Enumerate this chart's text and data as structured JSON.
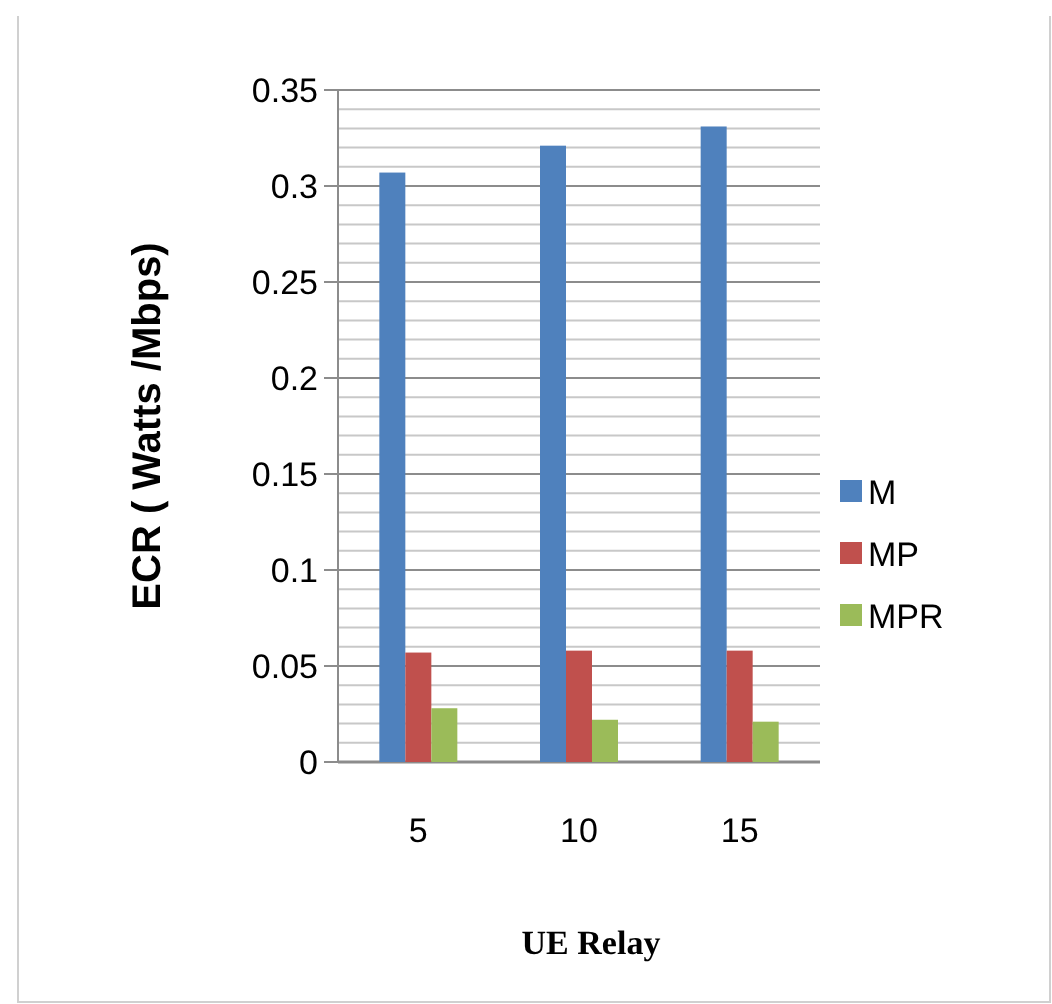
{
  "chart_data": {
    "type": "bar",
    "xlabel": "UE Relay",
    "ylabel": "ECR ( Watts /Mbps)",
    "categories": [
      "5",
      "10",
      "15"
    ],
    "series": [
      {
        "name": "M",
        "color": "#4f81bd",
        "values": [
          0.307,
          0.321,
          0.331
        ]
      },
      {
        "name": "MP",
        "color": "#c0504d",
        "values": [
          0.057,
          0.058,
          0.058
        ]
      },
      {
        "name": "MPR",
        "color": "#9bbb59",
        "values": [
          0.028,
          0.022,
          0.021
        ]
      }
    ],
    "ylim": [
      0,
      0.35
    ],
    "yticks": [
      0,
      {
        "value": 0.01,
        "label": null
      },
      {
        "value": 0.02,
        "label": null
      },
      {
        "value": 0.03,
        "label": null
      },
      {
        "value": 0.04,
        "label": null
      },
      0.05,
      {
        "value": 0.06,
        "label": null
      },
      {
        "value": 0.07,
        "label": null
      },
      {
        "value": 0.08,
        "label": null
      },
      {
        "value": 0.09,
        "label": null
      },
      0.1,
      {
        "value": 0.11,
        "label": null
      },
      {
        "value": 0.12,
        "label": null
      },
      {
        "value": 0.13,
        "label": null
      },
      {
        "value": 0.14,
        "label": null
      },
      0.15,
      {
        "value": 0.16,
        "label": null
      },
      {
        "value": 0.17,
        "label": null
      },
      {
        "value": 0.18,
        "label": null
      },
      {
        "value": 0.19,
        "label": null
      },
      0.2,
      {
        "value": 0.21,
        "label": null
      },
      {
        "value": 0.22,
        "label": null
      },
      {
        "value": 0.23,
        "label": null
      },
      {
        "value": 0.24,
        "label": null
      },
      0.25,
      {
        "value": 0.26,
        "label": null
      },
      {
        "value": 0.27,
        "label": null
      },
      {
        "value": 0.28,
        "label": null
      },
      {
        "value": 0.29,
        "label": null
      },
      0.3,
      {
        "value": 0.31,
        "label": null
      },
      {
        "value": 0.32,
        "label": null
      },
      {
        "value": 0.33,
        "label": null
      },
      {
        "value": 0.34,
        "label": null
      },
      0.35
    ],
    "grid": true,
    "legend": "right"
  }
}
